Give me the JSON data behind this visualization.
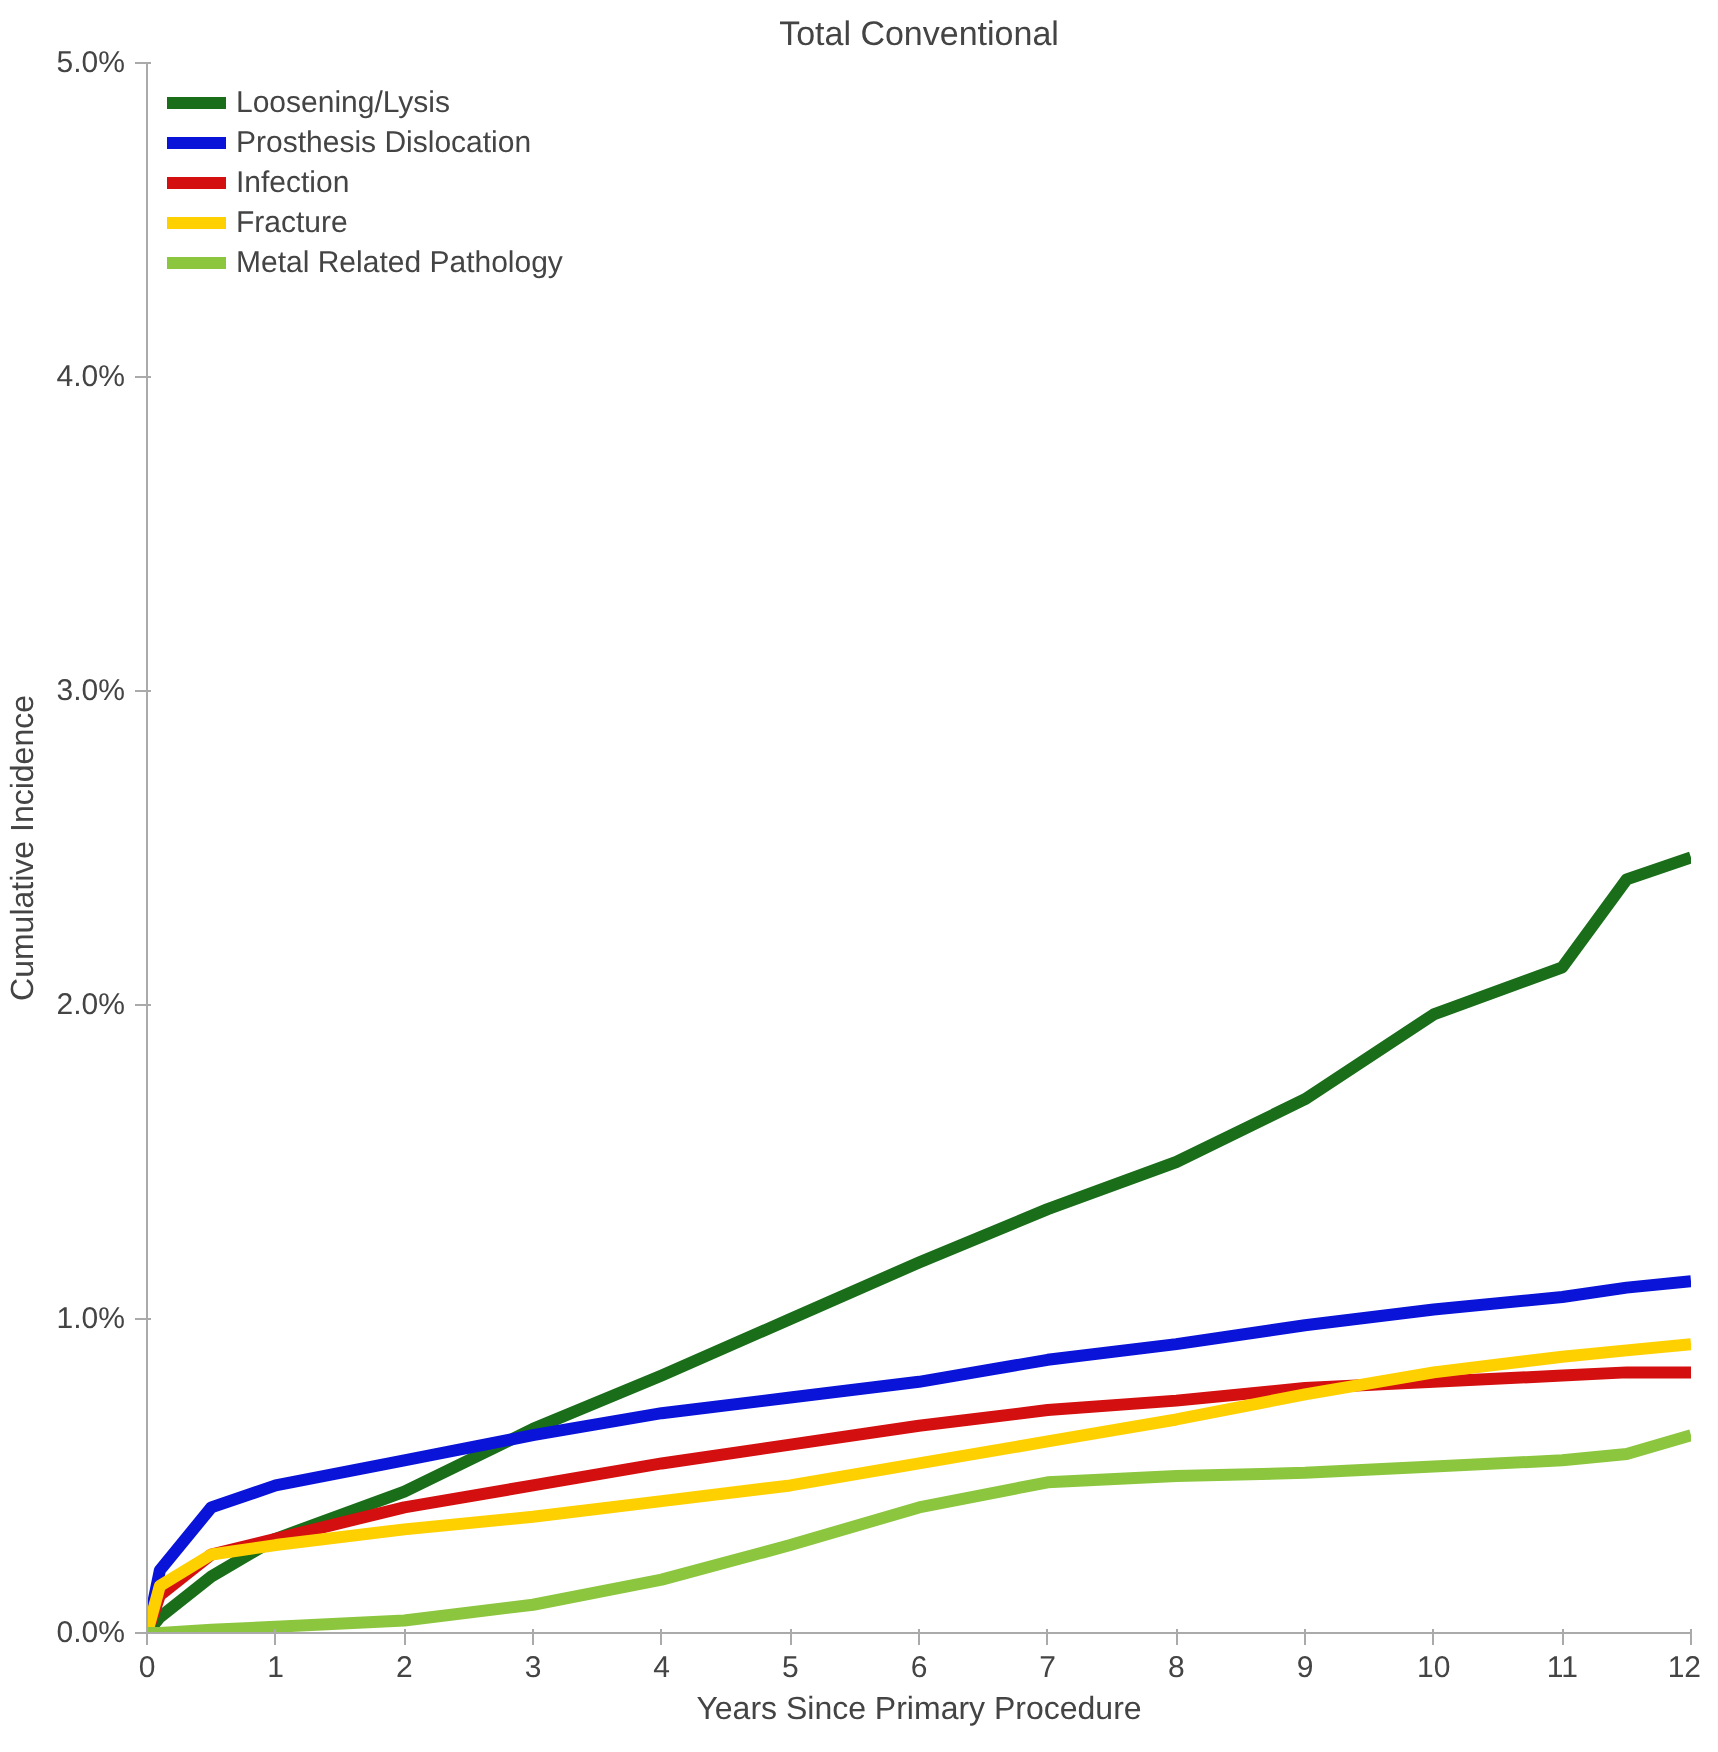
{
  "chart_data": {
    "type": "line",
    "title": "Total Conventional",
    "xlabel": "Years Since Primary Procedure",
    "ylabel": "Cumulative Incidence",
    "x": [
      0,
      0.1,
      0.5,
      1,
      2,
      3,
      4,
      5,
      6,
      7,
      8,
      9,
      10,
      11,
      11.5,
      12
    ],
    "xlim": [
      0,
      12
    ],
    "xticks": [
      0,
      1,
      2,
      3,
      4,
      5,
      6,
      7,
      8,
      9,
      10,
      11,
      12
    ],
    "ylim": [
      0,
      5
    ],
    "yticks": [
      {
        "value": 0,
        "label": "0.0%"
      },
      {
        "value": 1,
        "label": "1.0%"
      },
      {
        "value": 2,
        "label": "2.0%"
      },
      {
        "value": 3,
        "label": "3.0%"
      },
      {
        "value": 4,
        "label": "4.0%"
      },
      {
        "value": 5,
        "label": "5.0%"
      }
    ],
    "grid": false,
    "legend": "top left",
    "marker": "none",
    "line_style": "solid",
    "series": [
      {
        "name": "Loosening/Lysis",
        "color": "#1a6e1a",
        "values": [
          0,
          0.05,
          0.18,
          0.3,
          0.45,
          0.65,
          0.82,
          1.0,
          1.18,
          1.35,
          1.5,
          1.7,
          1.97,
          2.12,
          2.4,
          2.47
        ]
      },
      {
        "name": "Prosthesis Dislocation",
        "color": "#0a14d8",
        "values": [
          0,
          0.2,
          0.4,
          0.47,
          0.55,
          0.63,
          0.7,
          0.75,
          0.8,
          0.87,
          0.92,
          0.98,
          1.03,
          1.07,
          1.1,
          1.12
        ]
      },
      {
        "name": "Infection",
        "color": "#d40f0f",
        "values": [
          0,
          0.12,
          0.25,
          0.3,
          0.4,
          0.47,
          0.54,
          0.6,
          0.66,
          0.71,
          0.74,
          0.78,
          0.8,
          0.82,
          0.83,
          0.83
        ]
      },
      {
        "name": "Fracture",
        "color": "#ffd000",
        "values": [
          0,
          0.15,
          0.25,
          0.28,
          0.33,
          0.37,
          0.42,
          0.47,
          0.54,
          0.61,
          0.68,
          0.76,
          0.83,
          0.88,
          0.9,
          0.92
        ]
      },
      {
        "name": "Metal Related Pathology",
        "color": "#8cc63f",
        "values": [
          0,
          0,
          0.01,
          0.02,
          0.04,
          0.09,
          0.17,
          0.28,
          0.4,
          0.48,
          0.5,
          0.51,
          0.53,
          0.55,
          0.57,
          0.63
        ]
      }
    ]
  }
}
